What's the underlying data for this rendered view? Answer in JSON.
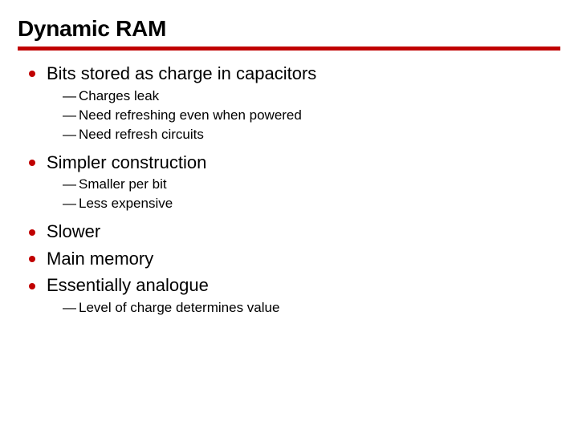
{
  "colors": {
    "accent": "#c00000",
    "text": "#000000",
    "bg": "#ffffff"
  },
  "title": "Dynamic RAM",
  "bullets": [
    {
      "text": "Bits stored as charge in capacitors",
      "sub": [
        "Charges leak",
        "Need refreshing even when powered",
        "Need refresh circuits"
      ]
    },
    {
      "text": "Simpler construction",
      "sub": [
        "Smaller per bit",
        "Less expensive"
      ]
    },
    {
      "text": "Slower",
      "sub": []
    },
    {
      "text": "Main memory",
      "sub": []
    },
    {
      "text": "Essentially analogue",
      "sub": [
        "Level of charge determines value"
      ]
    }
  ],
  "dash": "—"
}
